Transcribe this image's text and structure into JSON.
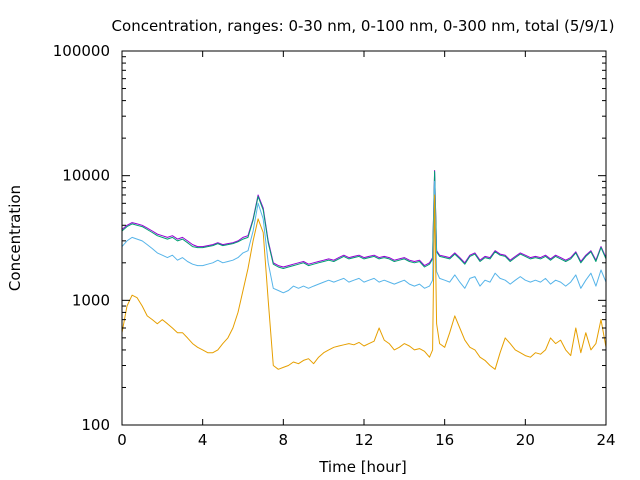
{
  "chart_data": {
    "type": "line",
    "title": "Concentration, ranges: 0-30 nm, 0-100 nm, 0-300 nm, total (5/9/1)",
    "xlabel": "Time [hour]",
    "ylabel": "Concentration",
    "xlim": [
      0,
      24
    ],
    "ylim": [
      100,
      100000
    ],
    "y_scale": "log",
    "grid": false,
    "legend": "none",
    "x_ticks": [
      0,
      4,
      8,
      12,
      16,
      20,
      24
    ],
    "x_tick_labels": [
      "0",
      "4",
      "8",
      "12",
      "16",
      "20",
      "24"
    ],
    "y_ticks": [
      100,
      1000,
      10000,
      100000
    ],
    "y_tick_labels": [
      "100",
      "1000",
      "10000",
      "100000"
    ],
    "x": [
      0,
      0.25,
      0.5,
      0.75,
      1,
      1.25,
      1.5,
      1.75,
      2,
      2.25,
      2.5,
      2.75,
      3,
      3.25,
      3.5,
      3.75,
      4,
      4.25,
      4.5,
      4.75,
      5,
      5.25,
      5.5,
      5.75,
      6,
      6.25,
      6.5,
      6.75,
      7,
      7.25,
      7.5,
      7.75,
      8,
      8.25,
      8.5,
      8.75,
      9,
      9.25,
      9.5,
      9.75,
      10,
      10.25,
      10.5,
      10.75,
      11,
      11.25,
      11.5,
      11.75,
      12,
      12.25,
      12.5,
      12.75,
      13,
      13.25,
      13.5,
      13.75,
      14,
      14.25,
      14.5,
      14.75,
      15,
      15.25,
      15.4,
      15.5,
      15.6,
      15.75,
      16,
      16.25,
      16.5,
      16.75,
      17,
      17.25,
      17.5,
      17.75,
      18,
      18.25,
      18.5,
      18.75,
      19,
      19.25,
      19.5,
      19.75,
      20,
      20.25,
      20.5,
      20.75,
      21,
      21.25,
      21.5,
      21.75,
      22,
      22.25,
      22.5,
      22.75,
      23,
      23.25,
      23.5,
      23.75,
      24
    ],
    "series": [
      {
        "color": "#9400d3",
        "values": [
          3700,
          4000,
          4200,
          4100,
          4000,
          3800,
          3600,
          3400,
          3300,
          3200,
          3300,
          3100,
          3200,
          3000,
          2800,
          2700,
          2700,
          2750,
          2800,
          2900,
          2800,
          2850,
          2900,
          3000,
          3200,
          3300,
          4500,
          7000,
          5500,
          3000,
          2000,
          1900,
          1850,
          1900,
          1950,
          2000,
          2050,
          1950,
          2000,
          2050,
          2100,
          2150,
          2100,
          2200,
          2300,
          2200,
          2250,
          2300,
          2200,
          2250,
          2300,
          2200,
          2250,
          2200,
          2100,
          2150,
          2200,
          2100,
          2050,
          2100,
          1900,
          2000,
          2200,
          11000,
          2500,
          2300,
          2250,
          2200,
          2400,
          2200,
          2000,
          2300,
          2400,
          2100,
          2250,
          2200,
          2500,
          2350,
          2300,
          2100,
          2250,
          2400,
          2300,
          2200,
          2250,
          2200,
          2300,
          2150,
          2300,
          2200,
          2100,
          2200,
          2450,
          2050,
          2300,
          2500,
          2100,
          2700,
          2200
        ]
      },
      {
        "color": "#009e73",
        "values": [
          3600,
          3900,
          4100,
          4000,
          3900,
          3700,
          3500,
          3300,
          3200,
          3100,
          3200,
          3000,
          3100,
          2900,
          2700,
          2650,
          2650,
          2700,
          2750,
          2850,
          2750,
          2800,
          2850,
          2950,
          3100,
          3200,
          4400,
          6800,
          5300,
          2900,
          1950,
          1850,
          1800,
          1850,
          1900,
          1950,
          2000,
          1900,
          1950,
          2000,
          2050,
          2100,
          2050,
          2150,
          2250,
          2150,
          2200,
          2250,
          2150,
          2200,
          2250,
          2150,
          2200,
          2150,
          2050,
          2100,
          2150,
          2050,
          2000,
          2050,
          1850,
          1950,
          2150,
          10800,
          2450,
          2250,
          2200,
          2150,
          2350,
          2150,
          1950,
          2250,
          2350,
          2050,
          2200,
          2150,
          2450,
          2300,
          2250,
          2050,
          2200,
          2350,
          2250,
          2150,
          2200,
          2150,
          2250,
          2100,
          2250,
          2150,
          2050,
          2150,
          2400,
          2000,
          2250,
          2450,
          2050,
          2650,
          2150
        ]
      },
      {
        "color": "#56b4e9",
        "values": [
          2700,
          3000,
          3200,
          3100,
          3000,
          2800,
          2600,
          2400,
          2300,
          2200,
          2300,
          2100,
          2200,
          2050,
          1950,
          1900,
          1900,
          1950,
          2000,
          2100,
          2000,
          2050,
          2100,
          2200,
          2400,
          2500,
          3600,
          6000,
          4500,
          2000,
          1250,
          1200,
          1150,
          1200,
          1300,
          1250,
          1300,
          1250,
          1300,
          1350,
          1400,
          1450,
          1400,
          1450,
          1500,
          1400,
          1450,
          1500,
          1400,
          1450,
          1500,
          1400,
          1450,
          1400,
          1350,
          1400,
          1450,
          1350,
          1300,
          1350,
          1250,
          1300,
          1450,
          9000,
          1700,
          1500,
          1450,
          1400,
          1600,
          1400,
          1250,
          1500,
          1550,
          1300,
          1450,
          1400,
          1650,
          1500,
          1450,
          1350,
          1450,
          1550,
          1450,
          1400,
          1450,
          1400,
          1500,
          1350,
          1450,
          1400,
          1300,
          1400,
          1600,
          1250,
          1450,
          1650,
          1300,
          1750,
          1400
        ]
      },
      {
        "color": "#e69f00",
        "values": [
          550,
          900,
          1100,
          1050,
          900,
          750,
          700,
          650,
          700,
          650,
          600,
          550,
          550,
          500,
          450,
          420,
          400,
          380,
          380,
          400,
          450,
          500,
          600,
          800,
          1200,
          1800,
          3000,
          4500,
          3500,
          1000,
          300,
          280,
          290,
          300,
          320,
          310,
          330,
          340,
          310,
          350,
          380,
          400,
          420,
          430,
          440,
          450,
          440,
          460,
          430,
          450,
          470,
          600,
          480,
          450,
          400,
          420,
          450,
          430,
          400,
          410,
          390,
          350,
          400,
          7000,
          650,
          450,
          420,
          550,
          750,
          600,
          480,
          420,
          400,
          350,
          330,
          300,
          280,
          380,
          500,
          450,
          400,
          380,
          360,
          350,
          380,
          370,
          400,
          500,
          450,
          480,
          400,
          360,
          600,
          380,
          550,
          400,
          450,
          700,
          420
        ]
      }
    ]
  }
}
